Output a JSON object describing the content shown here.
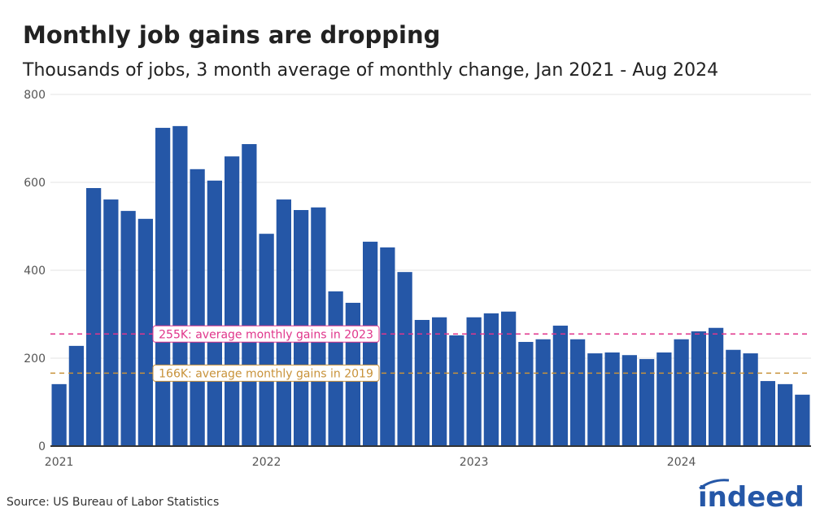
{
  "chart_data": {
    "type": "bar",
    "title": "Monthly job gains are dropping",
    "subtitle": "Thousands of jobs, 3 month average of monthly change, Jan 2021 - Aug 2024",
    "xlabel": "",
    "ylabel": "",
    "ylim": [
      0,
      800
    ],
    "yticks": [
      "0",
      "200",
      "400",
      "600",
      "800"
    ],
    "xticks": [
      "2021",
      "2022",
      "2023",
      "2024"
    ],
    "grid": true,
    "bar_color": "#2557a7",
    "categories": [
      "2021-01",
      "2021-02",
      "2021-03",
      "2021-04",
      "2021-05",
      "2021-06",
      "2021-07",
      "2021-08",
      "2021-09",
      "2021-10",
      "2021-11",
      "2021-12",
      "2022-01",
      "2022-02",
      "2022-03",
      "2022-04",
      "2022-05",
      "2022-06",
      "2022-07",
      "2022-08",
      "2022-09",
      "2022-10",
      "2022-11",
      "2022-12",
      "2023-01",
      "2023-02",
      "2023-03",
      "2023-04",
      "2023-05",
      "2023-06",
      "2023-07",
      "2023-08",
      "2023-09",
      "2023-10",
      "2023-11",
      "2023-12",
      "2024-01",
      "2024-02",
      "2024-03",
      "2024-04",
      "2024-05",
      "2024-06",
      "2024-07",
      "2024-08"
    ],
    "values": [
      141,
      228,
      587,
      561,
      535,
      517,
      724,
      728,
      630,
      604,
      659,
      687,
      483,
      561,
      537,
      543,
      352,
      326,
      465,
      452,
      396,
      287,
      293,
      252,
      293,
      302,
      306,
      237,
      243,
      274,
      243,
      211,
      213,
      207,
      198,
      213,
      243,
      261,
      269,
      219,
      211,
      148,
      141,
      117
    ],
    "reference_lines": [
      {
        "value": 255,
        "label": "255K: average monthly gains in 2023",
        "color": "#e0358b"
      },
      {
        "value": 166,
        "label": "166K: average monthly gains in 2019",
        "color": "#c8923a"
      }
    ]
  },
  "source": "Source: US Bureau of Labor Statistics",
  "logo": "indeed"
}
